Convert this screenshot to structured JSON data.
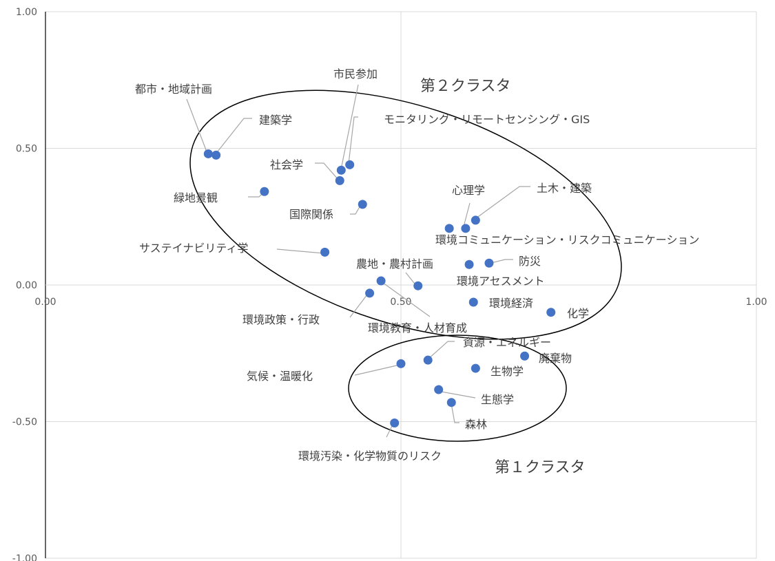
{
  "chart_data": {
    "type": "scatter",
    "title": "",
    "xlabel": "",
    "ylabel": "",
    "xlim": [
      0,
      1
    ],
    "ylim": [
      -1,
      1
    ],
    "grid": true,
    "x_ticks": [
      {
        "value": 0,
        "label": "0.00"
      },
      {
        "value": 0.5,
        "label": "0.50"
      },
      {
        "value": 1,
        "label": "1.00"
      }
    ],
    "y_ticks": [
      {
        "value": 1,
        "label": "1.00"
      },
      {
        "value": 0.5,
        "label": "0.50"
      },
      {
        "value": 0,
        "label": "0.00"
      },
      {
        "value": -0.5,
        "label": "-0.50"
      },
      {
        "value": -1,
        "label": "-1.00"
      }
    ],
    "points": [
      {
        "label": "都市・地域計画",
        "x": 0.229,
        "y": 0.48
      },
      {
        "label": "建築学",
        "x": 0.24,
        "y": 0.475
      },
      {
        "label": "市民参加",
        "x": 0.416,
        "y": 0.42
      },
      {
        "label": "モニタリング・リモートセンシング・GIS",
        "x": 0.428,
        "y": 0.44
      },
      {
        "label": "社会学",
        "x": 0.414,
        "y": 0.382
      },
      {
        "label": "緑地景観",
        "x": 0.308,
        "y": 0.342
      },
      {
        "label": "国際関係",
        "x": 0.446,
        "y": 0.295
      },
      {
        "label": "心理学",
        "x": 0.591,
        "y": 0.207
      },
      {
        "label": "土木・建築",
        "x": 0.605,
        "y": 0.237
      },
      {
        "label": "環境コミュニケーション・リスクコミュニケーション",
        "x": 0.568,
        "y": 0.207
      },
      {
        "label": "サステイナビリティ学",
        "x": 0.393,
        "y": 0.12
      },
      {
        "label": "防災",
        "x": 0.624,
        "y": 0.08
      },
      {
        "label": "農地・農村計画",
        "x": 0.524,
        "y": -0.003
      },
      {
        "label": "環境アセスメント",
        "x": 0.596,
        "y": 0.075
      },
      {
        "label": "環境政策・行政",
        "x": 0.456,
        "y": -0.03
      },
      {
        "label": "環境教育・人材育成",
        "x": 0.472,
        "y": 0.015
      },
      {
        "label": "環境経済",
        "x": 0.602,
        "y": -0.063
      },
      {
        "label": "化学",
        "x": 0.711,
        "y": -0.1
      },
      {
        "label": "資源・エネルギー",
        "x": 0.538,
        "y": -0.275
      },
      {
        "label": "気候・温暖化",
        "x": 0.5,
        "y": -0.288
      },
      {
        "label": "廃棄物",
        "x": 0.674,
        "y": -0.26
      },
      {
        "label": "生物学",
        "x": 0.605,
        "y": -0.305
      },
      {
        "label": "生態学",
        "x": 0.553,
        "y": -0.383
      },
      {
        "label": "森林",
        "x": 0.571,
        "y": -0.43
      },
      {
        "label": "環境汚染・化学物質のリスク",
        "x": 0.491,
        "y": -0.505
      }
    ],
    "annotations": [
      {
        "label": "第２クラスタ",
        "type": "cluster"
      },
      {
        "label": "第１クラスタ",
        "type": "cluster"
      }
    ]
  }
}
